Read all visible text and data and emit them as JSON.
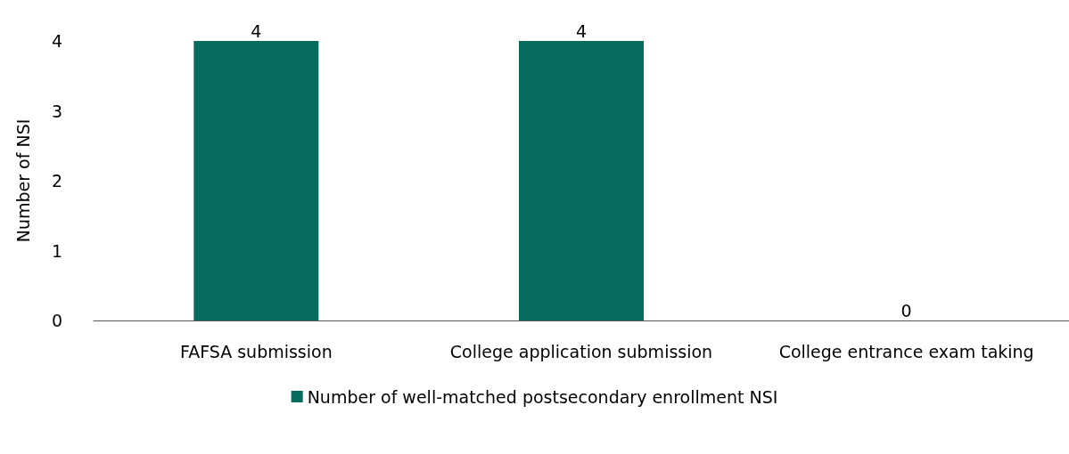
{
  "chart_data": {
    "type": "bar",
    "ylabel": "Number of NSI",
    "categories": [
      "FAFSA submission",
      "College application submission",
      "College entrance exam taking"
    ],
    "series": [
      {
        "name": "Number of well-matched postsecondary enrollment NSI",
        "color": "#076b5e",
        "values": [
          4,
          4,
          0
        ]
      }
    ],
    "ylim": [
      0,
      4
    ],
    "yticks": [
      0,
      1,
      2,
      3,
      4
    ],
    "grid": false,
    "legend": "bottom",
    "data_labels": true
  }
}
